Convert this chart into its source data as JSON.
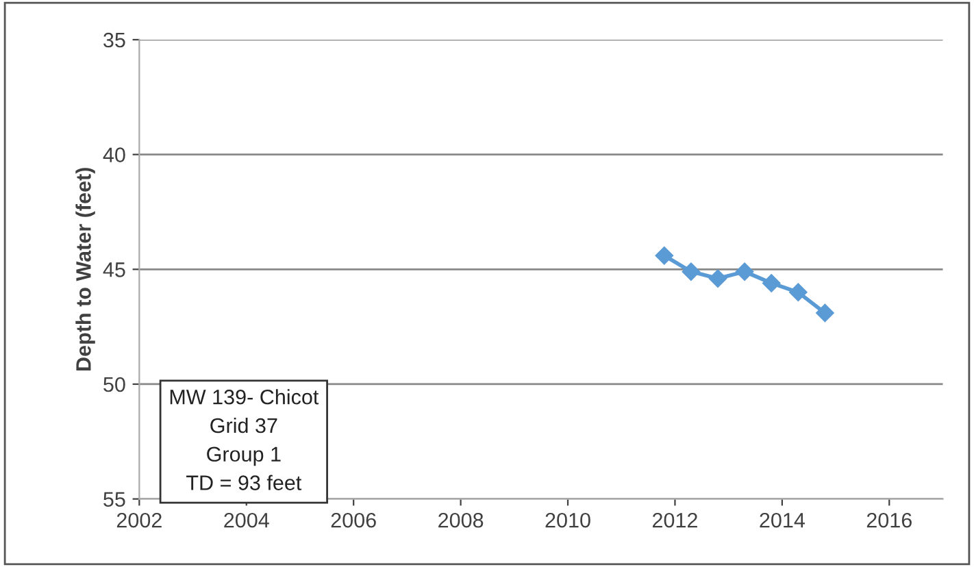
{
  "chart_data": {
    "type": "line",
    "ylabel": "Depth to Water (feet)",
    "x": [
      2011.8,
      2012.3,
      2012.8,
      2013.3,
      2013.8,
      2014.3,
      2014.8
    ],
    "series": [
      {
        "color": "#5b9bd5",
        "values": [
          44.4,
          45.1,
          45.4,
          45.1,
          45.6,
          46.0,
          46.9
        ]
      }
    ],
    "xlim": [
      2002,
      2017
    ],
    "xticks": [
      2002,
      2004,
      2006,
      2008,
      2010,
      2012,
      2014,
      2016
    ],
    "ylim": [
      55,
      35
    ],
    "yticks": [
      35,
      40,
      45,
      50,
      55
    ],
    "grid": "y",
    "marker": "diamond",
    "line_style": "solid",
    "annotations": [
      "MW 139- Chicot\nGrid 37\nGroup 1\nTD = 93 feet"
    ]
  }
}
